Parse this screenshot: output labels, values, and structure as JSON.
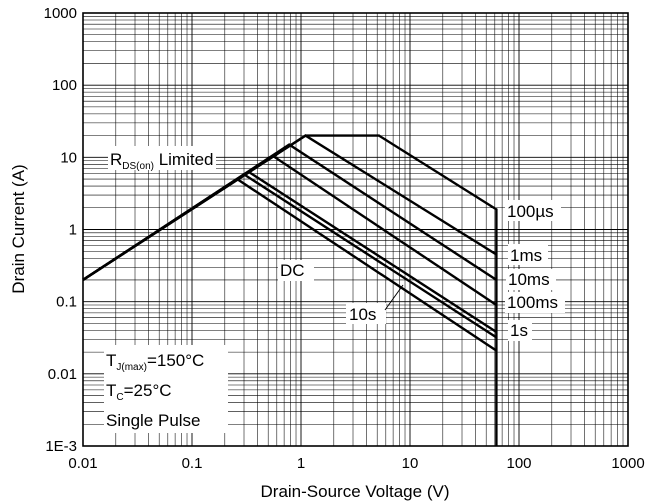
{
  "chart_data": {
    "type": "line",
    "title": "",
    "xlabel": "Drain-Source Voltage (V)",
    "ylabel": "Drain Current (A)",
    "xscale": "log",
    "yscale": "log",
    "xlim": [
      0.01,
      1000
    ],
    "ylim": [
      0.001,
      1000
    ],
    "grid": true,
    "x_ticks": [
      "0.01",
      "0.1",
      "1",
      "10",
      "100",
      "1000"
    ],
    "y_ticks": [
      "1E-3",
      "0.01",
      "0.1",
      "1",
      "10",
      "100",
      "1000"
    ],
    "annotations": {
      "rds_main": "R",
      "rds_sub": "DS(on)",
      "rds_rest": " Limited",
      "tj_main": "T",
      "tj_sub": "J(max)",
      "tj_rest": "=150°C",
      "tc_main": "T",
      "tc_sub": "C",
      "tc_rest": "=25°C",
      "pulse": "Single Pulse"
    },
    "series": [
      {
        "label": "100µs",
        "points": [
          [
            0.01,
            0.2
          ],
          [
            1.1,
            20
          ],
          [
            5.2,
            20
          ],
          [
            62,
            1.9
          ],
          [
            62,
            0.001
          ]
        ]
      },
      {
        "label": "1ms",
        "points": [
          [
            0.01,
            0.2
          ],
          [
            1.1,
            20
          ],
          [
            62,
            0.45
          ]
        ]
      },
      {
        "label": "10ms",
        "points": [
          [
            0.01,
            0.2
          ],
          [
            0.78,
            15
          ],
          [
            62,
            0.2
          ]
        ]
      },
      {
        "label": "100ms",
        "points": [
          [
            0.01,
            0.2
          ],
          [
            0.55,
            10.5
          ],
          [
            62,
            0.09
          ]
        ]
      },
      {
        "label": "1s",
        "points": [
          [
            0.01,
            0.2
          ],
          [
            0.33,
            6.3
          ],
          [
            62,
            0.038
          ]
        ]
      },
      {
        "label": "10s",
        "points": [
          [
            0.01,
            0.2
          ],
          [
            0.3,
            5.8
          ],
          [
            62,
            0.032
          ]
        ]
      },
      {
        "label": "DC",
        "points": [
          [
            0.01,
            0.2
          ],
          [
            0.26,
            5.0
          ],
          [
            62,
            0.021
          ]
        ]
      }
    ]
  }
}
